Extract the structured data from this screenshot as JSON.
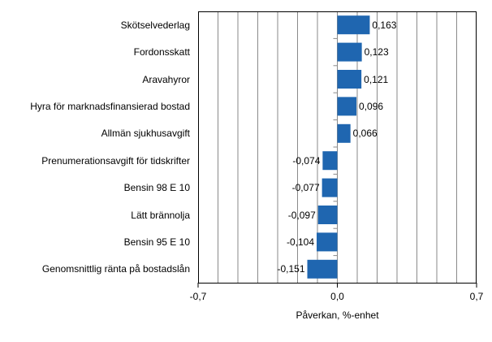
{
  "chart_data": {
    "type": "bar",
    "orientation": "horizontal",
    "title": "",
    "xlabel": "Påverkan, %-enhet",
    "ylabel": "",
    "xlim": [
      -0.7,
      0.7
    ],
    "x_ticks": [
      "-0,7",
      "0,0",
      "0,7"
    ],
    "grid": {
      "vertical": true,
      "step": 0.1
    },
    "legend": null,
    "color": "#1f66b0",
    "categories": [
      "Skötselvederlag",
      "Fordonsskatt",
      "Aravahyror",
      "Hyra för marknadsfinansierad bostad",
      "Allmän sjukhusavgift",
      "Prenumerationsavgift för tidskrifter",
      "Bensin 98 E 10",
      "Lätt brännolja",
      "Bensin 95 E 10",
      "Genomsnittlig ränta på bostadslån"
    ],
    "values": [
      0.163,
      0.123,
      0.121,
      0.096,
      0.066,
      -0.074,
      -0.077,
      -0.097,
      -0.104,
      -0.151
    ],
    "value_labels": [
      "0,163",
      "0,123",
      "0,121",
      "0,096",
      "0,066",
      "-0,074",
      "-0,077",
      "-0,097",
      "-0,104",
      "-0,151"
    ]
  }
}
